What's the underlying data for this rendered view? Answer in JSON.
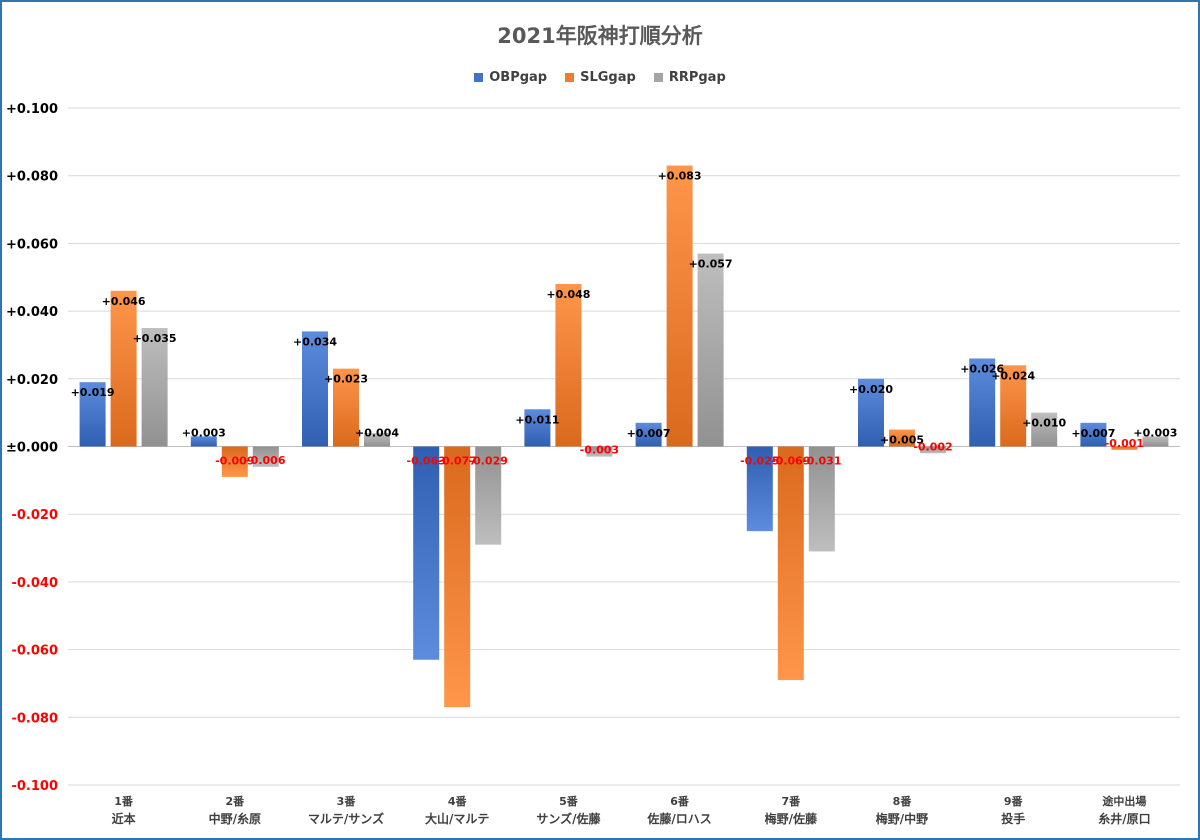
{
  "chart_data": {
    "type": "bar",
    "title": "2021年阪神打順分析",
    "categories": [
      [
        "1番",
        "近本"
      ],
      [
        "2番",
        "中野/糸原"
      ],
      [
        "3番",
        "マルテ/サンズ"
      ],
      [
        "4番",
        "大山/マルテ"
      ],
      [
        "5番",
        "サンズ/佐藤"
      ],
      [
        "6番",
        "佐藤/ロハス"
      ],
      [
        "7番",
        "梅野/佐藤"
      ],
      [
        "8番",
        "梅野/中野"
      ],
      [
        "9番",
        "投手"
      ],
      [
        "途中出場",
        "糸井/原口"
      ]
    ],
    "series": [
      {
        "name": "OBPgap",
        "color": "#4472c4",
        "values": [
          0.019,
          0.003,
          0.034,
          -0.063,
          0.011,
          0.007,
          -0.025,
          0.02,
          0.026,
          0.007
        ],
        "labels": [
          "+0.019",
          "+0.003",
          "+0.034",
          "-0.063",
          "+0.011",
          "+0.007",
          "-0.025",
          "+0.020",
          "+0.026",
          "+0.007"
        ]
      },
      {
        "name": "SLGgap",
        "color": "#ed7d31",
        "values": [
          0.046,
          -0.009,
          0.023,
          -0.077,
          0.048,
          0.083,
          -0.069,
          0.005,
          0.024,
          -0.001
        ],
        "labels": [
          "+0.046",
          "-0.009",
          "+0.023",
          "-0.077",
          "+0.048",
          "+0.083",
          "-0.069",
          "+0.005",
          "+0.024",
          "-0.001"
        ]
      },
      {
        "name": "RRPgap",
        "color": "#a5a5a5",
        "values": [
          0.035,
          -0.006,
          0.004,
          -0.029,
          -0.003,
          0.057,
          -0.031,
          -0.002,
          0.01,
          0.003
        ],
        "labels": [
          "+0.035",
          "-0.006",
          "+0.004",
          "-0.029",
          "-0.003",
          "+0.057",
          "-0.031",
          "-0.002",
          "+0.010",
          "+0.003"
        ]
      }
    ],
    "ylim": [
      -0.1,
      0.1
    ],
    "yticks": [
      "+0.100",
      "+0.080",
      "+0.060",
      "+0.040",
      "+0.020",
      "±0.000",
      "-0.020",
      "-0.040",
      "-0.060",
      "-0.080",
      "-0.100"
    ],
    "ytick_values": [
      0.1,
      0.08,
      0.06,
      0.04,
      0.02,
      0.0,
      -0.02,
      -0.04,
      -0.06,
      -0.08,
      -0.1
    ],
    "grid": true,
    "legend_position": "top-center",
    "positive_label_color": "#000000",
    "negative_label_color": "#ff0000",
    "negative_tick_color": "#ff0000",
    "positive_tick_color": "#000000"
  }
}
